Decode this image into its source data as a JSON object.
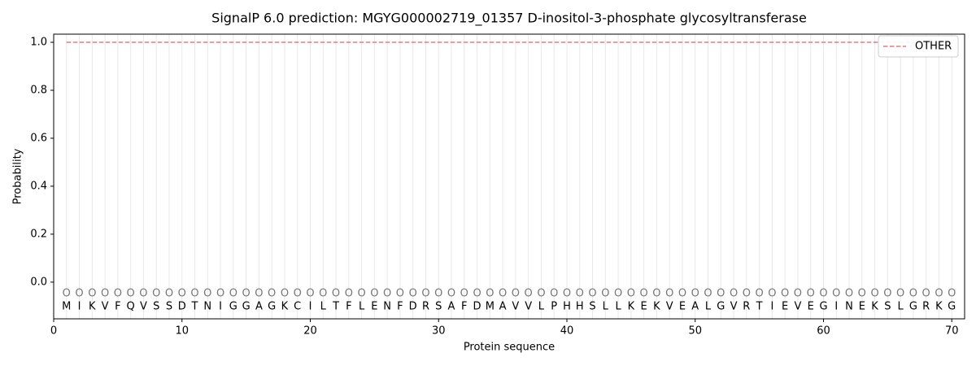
{
  "chart_data": {
    "type": "line",
    "title": "SignalP 6.0 prediction: MGYG000002719_01357 D-inositol-3-phosphate glycosyltransferase",
    "xlabel": "Protein sequence",
    "ylabel": "Probability",
    "x": [
      1,
      2,
      3,
      4,
      5,
      6,
      7,
      8,
      9,
      10,
      11,
      12,
      13,
      14,
      15,
      16,
      17,
      18,
      19,
      20,
      21,
      22,
      23,
      24,
      25,
      26,
      27,
      28,
      29,
      30,
      31,
      32,
      33,
      34,
      35,
      36,
      37,
      38,
      39,
      40,
      41,
      42,
      43,
      44,
      45,
      46,
      47,
      48,
      49,
      50,
      51,
      52,
      53,
      54,
      55,
      56,
      57,
      58,
      59,
      60,
      61,
      62,
      63,
      64,
      65,
      66,
      67,
      68,
      69,
      70
    ],
    "sequence": [
      "M",
      "I",
      "K",
      "V",
      "F",
      "Q",
      "V",
      "S",
      "S",
      "D",
      "T",
      "N",
      "I",
      "G",
      "G",
      "A",
      "G",
      "K",
      "C",
      "I",
      "L",
      "T",
      "F",
      "L",
      "E",
      "N",
      "F",
      "D",
      "R",
      "S",
      "A",
      "F",
      "D",
      "M",
      "A",
      "V",
      "V",
      "L",
      "P",
      "H",
      "H",
      "S",
      "L",
      "L",
      "K",
      "E",
      "K",
      "V",
      "E",
      "A",
      "L",
      "G",
      "V",
      "R",
      "T",
      "I",
      "E",
      "V",
      "E",
      "G",
      "I",
      "N",
      "E",
      "K",
      "S",
      "L",
      "G",
      "R",
      "K",
      "G"
    ],
    "region_labels": [
      "O",
      "O",
      "O",
      "O",
      "O",
      "O",
      "O",
      "O",
      "O",
      "O",
      "O",
      "O",
      "O",
      "O",
      "O",
      "O",
      "O",
      "O",
      "O",
      "O",
      "O",
      "O",
      "O",
      "O",
      "O",
      "O",
      "O",
      "O",
      "O",
      "O",
      "O",
      "O",
      "O",
      "O",
      "O",
      "O",
      "O",
      "O",
      "O",
      "O",
      "O",
      "O",
      "O",
      "O",
      "O",
      "O",
      "O",
      "O",
      "O",
      "O",
      "O",
      "O",
      "O",
      "O",
      "O",
      "O",
      "O",
      "O",
      "O",
      "O",
      "O",
      "O",
      "O",
      "O",
      "O",
      "O",
      "O",
      "O",
      "O",
      "O"
    ],
    "series": [
      {
        "name": "OTHER",
        "color": "#e87c7c",
        "dash": true,
        "values": [
          1,
          1,
          1,
          1,
          1,
          1,
          1,
          1,
          1,
          1,
          1,
          1,
          1,
          1,
          1,
          1,
          1,
          1,
          1,
          1,
          1,
          1,
          1,
          1,
          1,
          1,
          1,
          1,
          1,
          1,
          1,
          1,
          1,
          1,
          1,
          1,
          1,
          1,
          1,
          1,
          1,
          1,
          1,
          1,
          1,
          1,
          1,
          1,
          1,
          1,
          1,
          1,
          1,
          1,
          1,
          1,
          1,
          1,
          1,
          1,
          1,
          1,
          1,
          1,
          1,
          1,
          1,
          1,
          1,
          1
        ]
      }
    ],
    "xlim": [
      0,
      71
    ],
    "ylim": [
      -0.153,
      1.034
    ],
    "xticks": [
      0,
      10,
      20,
      30,
      40,
      50,
      60,
      70
    ],
    "yticks": [
      {
        "value": 0,
        "label": "0.0"
      },
      {
        "value": 0.2,
        "label": "0.2"
      },
      {
        "value": 0.4,
        "label": "0.4"
      },
      {
        "value": 0.6,
        "label": "0.6"
      },
      {
        "value": 0.8,
        "label": "0.8"
      },
      {
        "value": 1,
        "label": "1.0"
      }
    ],
    "grid": true,
    "legend": "upper right"
  }
}
